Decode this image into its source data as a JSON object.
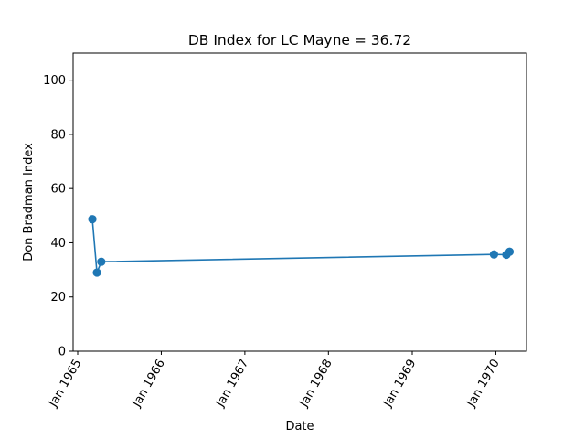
{
  "chart_data": {
    "type": "line",
    "title": "DB Index for LC Mayne = 36.72",
    "xlabel": "Date",
    "ylabel": "Don Bradman Index",
    "xlim": [
      "1964-12-12",
      "1970-05-15"
    ],
    "ylim": [
      0,
      110
    ],
    "x_ticks": [
      {
        "date": "1965-01-01",
        "label": "Jan 1965"
      },
      {
        "date": "1966-01-01",
        "label": "Jan 1966"
      },
      {
        "date": "1967-01-01",
        "label": "Jan 1967"
      },
      {
        "date": "1968-01-01",
        "label": "Jan 1968"
      },
      {
        "date": "1969-01-01",
        "label": "Jan 1969"
      },
      {
        "date": "1970-01-01",
        "label": "Jan 1970"
      }
    ],
    "y_ticks": [
      0,
      20,
      40,
      60,
      80,
      100
    ],
    "grid": false,
    "series": [
      {
        "color": "#1f77b4",
        "points": [
          {
            "x": "1965-03-06",
            "y": 48.7
          },
          {
            "x": "1965-03-26",
            "y": 29.0
          },
          {
            "x": "1965-04-14",
            "y": 33.0
          },
          {
            "x": "1969-12-24",
            "y": 35.7
          },
          {
            "x": "1970-02-16",
            "y": 35.6
          },
          {
            "x": "1970-03-02",
            "y": 36.7
          }
        ]
      }
    ]
  }
}
